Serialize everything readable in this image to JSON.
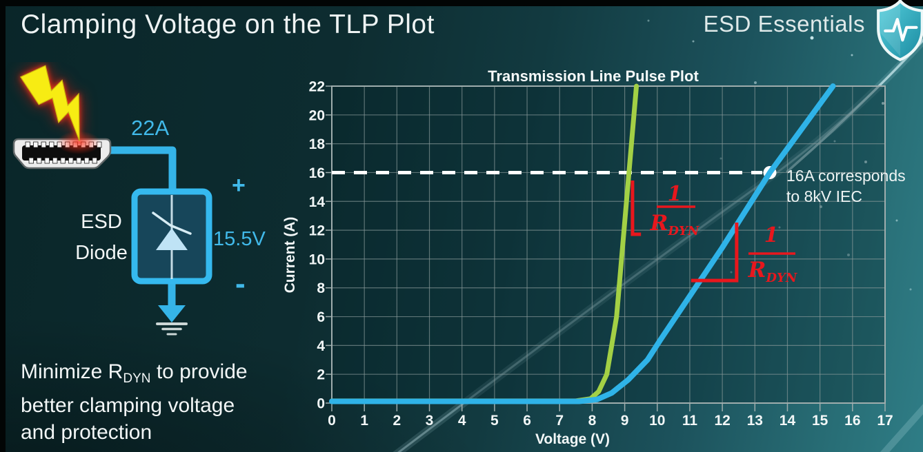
{
  "slide": {
    "title": "Clamping Voltage on the TLP Plot",
    "brand": "ESD Essentials"
  },
  "diagram": {
    "surge_current_label": "22A",
    "device_label": [
      "ESD",
      "Diode"
    ],
    "plus_sign": "+",
    "minus_sign": "-",
    "clamp_voltage_label": "15.5V"
  },
  "note": {
    "prefix": "Minimize R",
    "subscript": "DYN",
    "suffix": " to provide",
    "line2": "better clamping voltage",
    "line3": "and protection"
  },
  "chart_data": {
    "type": "line",
    "title": "Transmission Line Pulse Plot",
    "xlabel": "Voltage (V)",
    "ylabel": "Current (A)",
    "xlim": [
      0,
      17
    ],
    "ylim": [
      0,
      22
    ],
    "x_ticks": [
      0,
      1,
      2,
      3,
      4,
      5,
      6,
      7,
      8,
      9,
      10,
      11,
      12,
      13,
      14,
      15,
      16,
      17
    ],
    "y_ticks": [
      0,
      2,
      4,
      6,
      8,
      10,
      12,
      14,
      16,
      18,
      20,
      22
    ],
    "grid": true,
    "series": [
      {
        "name": "green-curve",
        "color": "#a3d045",
        "points": [
          [
            0,
            0.15
          ],
          [
            7.5,
            0.15
          ],
          [
            7.95,
            0.3
          ],
          [
            8.2,
            0.8
          ],
          [
            8.45,
            2
          ],
          [
            8.75,
            6
          ],
          [
            9.36,
            22
          ]
        ]
      },
      {
        "name": "blue-curve",
        "color": "#2fb3e8",
        "points": [
          [
            0,
            0.12
          ],
          [
            7.6,
            0.12
          ],
          [
            8.15,
            0.25
          ],
          [
            8.6,
            0.7
          ],
          [
            9.1,
            1.6
          ],
          [
            9.7,
            3.0
          ],
          [
            10.1,
            4.4
          ],
          [
            11.05,
            7.6
          ],
          [
            12.0,
            10.8
          ],
          [
            13.46,
            16
          ],
          [
            15.4,
            22
          ]
        ]
      }
    ],
    "reference_line": {
      "y": 16,
      "color": "#ffffff",
      "style": "dashed"
    },
    "marker": {
      "x": 13.46,
      "y": 16,
      "color": "#ffffff"
    },
    "marker_note": [
      "16A corresponds",
      "to 8kV IEC"
    ],
    "slope_fraction": {
      "numerator": "1",
      "denominator": "R",
      "denominator_sub": "DYN"
    },
    "slope_brackets": [
      [
        [
          9.24,
          15.45
        ],
        [
          9.24,
          11.72
        ],
        [
          9.5,
          11.72
        ]
      ],
      [
        [
          11.04,
          8.51
        ],
        [
          12.44,
          8.51
        ],
        [
          12.44,
          12.53
        ]
      ]
    ],
    "annotation_color": "#e8171d"
  }
}
